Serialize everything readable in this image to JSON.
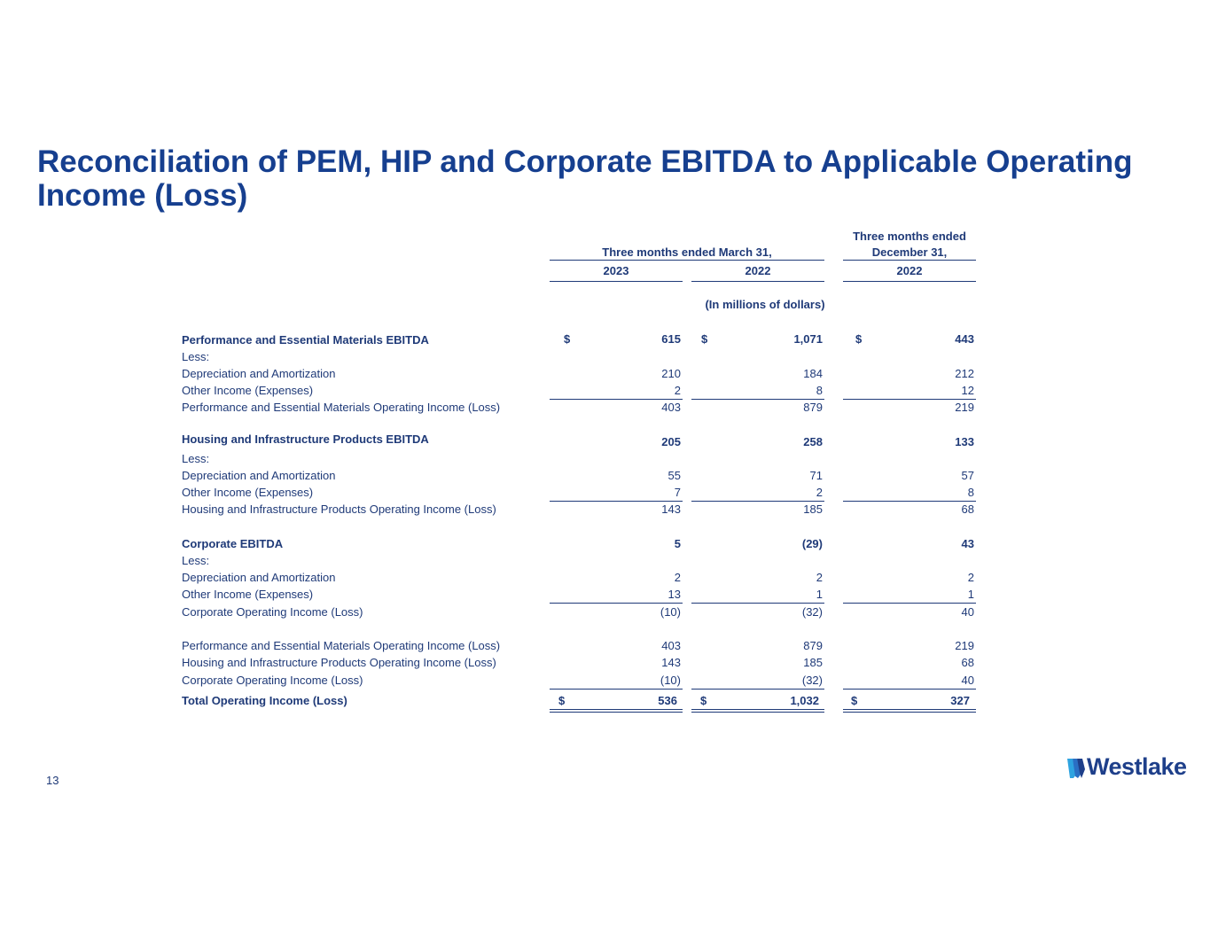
{
  "title": "Reconciliation of PEM, HIP and Corporate EBITDA to Applicable Operating Income (Loss)",
  "header": {
    "group1": "Three months ended March 31,",
    "group2_line1": "Three months ended",
    "group2_line2": "December 31,",
    "col1_year": "2023",
    "col2_year": "2022",
    "col3_year": "2022",
    "units": "(In millions of dollars)"
  },
  "rows": [
    {
      "label": "Performance and Essential Materials EBITDA",
      "c1": "615",
      "c2": "1,071",
      "c3": "443",
      "cur": "$"
    },
    {
      "label": "Less:",
      "c1": "",
      "c2": "",
      "c3": ""
    },
    {
      "label": "Depreciation and Amortization",
      "c1": "210",
      "c2": "184",
      "c3": "212"
    },
    {
      "label": "Other Income (Expenses)",
      "c1": "2",
      "c2": "8",
      "c3": "12"
    },
    {
      "label": "Performance and Essential Materials Operating Income (Loss)",
      "c1": "403",
      "c2": "879",
      "c3": "219"
    },
    {
      "label": "Housing and Infrastructure Products EBITDA",
      "c1": "205",
      "c2": "258",
      "c3": "133"
    },
    {
      "label": "Less:",
      "c1": "",
      "c2": "",
      "c3": ""
    },
    {
      "label": "Depreciation and Amortization",
      "c1": "55",
      "c2": "71",
      "c3": "57"
    },
    {
      "label": "Other Income (Expenses)",
      "c1": "7",
      "c2": "2",
      "c3": "8"
    },
    {
      "label": "Housing and Infrastructure Products Operating Income (Loss)",
      "c1": "143",
      "c2": "185",
      "c3": "68"
    },
    {
      "label": "Corporate EBITDA",
      "c1": "5",
      "c2": "(29)",
      "c3": "43"
    },
    {
      "label": "Less:",
      "c1": "",
      "c2": "",
      "c3": ""
    },
    {
      "label": "Depreciation and Amortization",
      "c1": "2",
      "c2": "2",
      "c3": "2"
    },
    {
      "label": "Other Income (Expenses)",
      "c1": "13",
      "c2": "1",
      "c3": "1"
    },
    {
      "label": "Corporate Operating Income (Loss)",
      "c1": "(10)",
      "c2": "(32)",
      "c3": "40"
    },
    {
      "label": "Performance and Essential Materials Operating Income (Loss)",
      "c1": "403",
      "c2": "879",
      "c3": "219"
    },
    {
      "label": "Housing and Infrastructure Products Operating Income (Loss)",
      "c1": "143",
      "c2": "185",
      "c3": "68"
    },
    {
      "label": "Corporate Operating Income (Loss)",
      "c1": "(10)",
      "c2": "(32)",
      "c3": "40"
    },
    {
      "label": "Total Operating Income (Loss)",
      "c1": "536",
      "c2": "1,032",
      "c3": "327",
      "cur": "$"
    }
  ],
  "page_number": "13",
  "logo": {
    "text": "Westlake",
    "color": "#1e3f8a"
  }
}
